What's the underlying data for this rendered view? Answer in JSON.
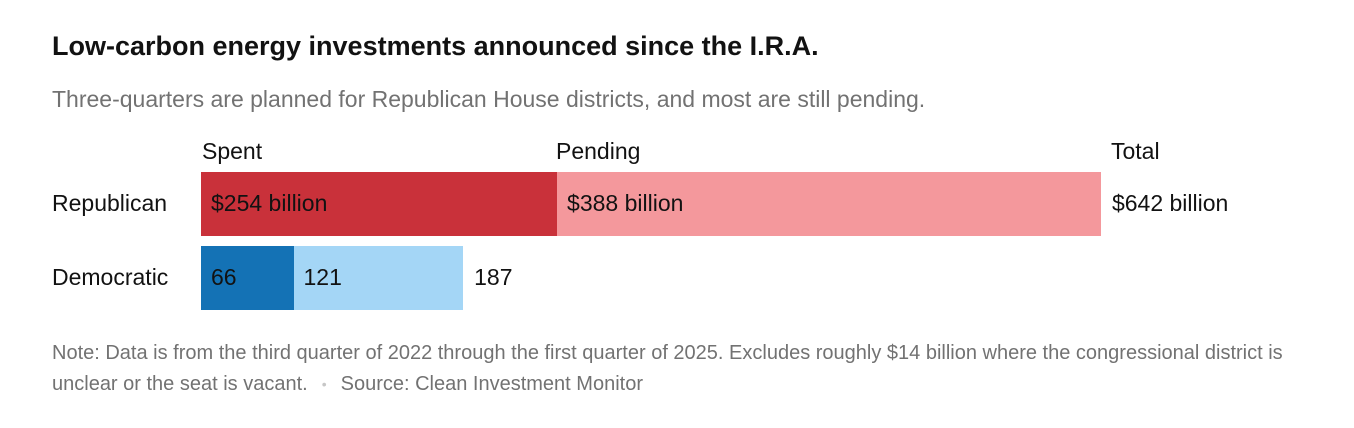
{
  "title": "Low-carbon energy investments announced since the I.R.A.",
  "subtitle": "Three-quarters are planned for Republican House districts, and most are still pending.",
  "chart_data": {
    "type": "bar",
    "orientation": "horizontal",
    "stacked": true,
    "unit": "billion dollars",
    "column_headers": {
      "spent": "Spent",
      "pending": "Pending",
      "total": "Total"
    },
    "categories": [
      "Republican",
      "Democratic"
    ],
    "series": [
      {
        "name": "Spent",
        "values": [
          254,
          66
        ],
        "colors": [
          "#c9313a",
          "#1472b5"
        ]
      },
      {
        "name": "Pending",
        "values": [
          388,
          121
        ],
        "colors": [
          "#f4989c",
          "#a4d6f6"
        ]
      }
    ],
    "totals": [
      642,
      187
    ],
    "value_labels": {
      "spent": [
        "$254 billion",
        "66"
      ],
      "pending": [
        "$388 billion",
        "121"
      ],
      "total": [
        "$642 billion",
        "187"
      ]
    }
  },
  "note": {
    "text": "Note: Data is from the third quarter of 2022 through the first quarter of 2025. Excludes roughly $14 billion where the congressional district is unclear or the seat is vacant.",
    "separator": "•",
    "source": "Source: Clean Investment Monitor"
  }
}
